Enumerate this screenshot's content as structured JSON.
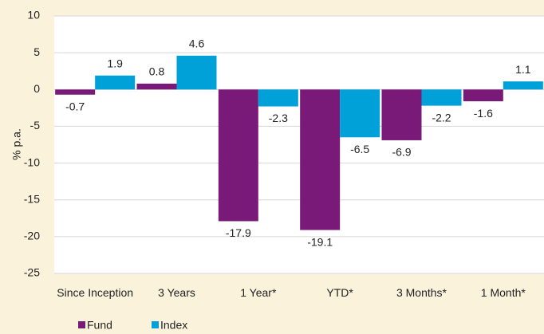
{
  "chart_data": {
    "type": "bar",
    "y_label": "% p.a.",
    "categories": [
      "Since Inception",
      "3 Years",
      "1 Year*",
      "YTD*",
      "3 Months*",
      "1 Month*"
    ],
    "series": [
      {
        "name": "Fund",
        "color": "#7a1a78",
        "values": [
          -0.7,
          0.8,
          -17.9,
          -19.1,
          -6.9,
          -1.6
        ]
      },
      {
        "name": "Index",
        "color": "#00a1d8",
        "values": [
          1.9,
          4.6,
          -2.3,
          -6.5,
          -2.2,
          1.1
        ]
      }
    ],
    "ylim": [
      -25,
      10
    ],
    "yticks": [
      -25,
      -20,
      -15,
      -10,
      -5,
      0,
      5,
      10
    ],
    "grid": true
  }
}
